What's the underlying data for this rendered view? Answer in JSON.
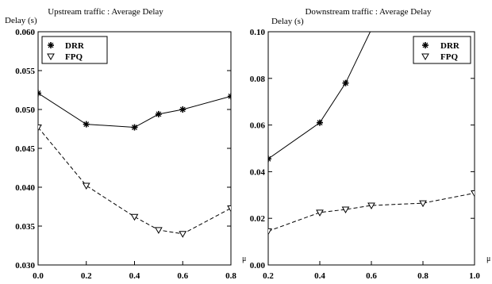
{
  "chart_data": [
    {
      "type": "line",
      "title": "Upstream traffic : Average Delay",
      "ylabel": "Delay (s)",
      "xlabel": "μ",
      "xlim": [
        0.0,
        0.8
      ],
      "ylim": [
        0.03,
        0.06
      ],
      "xticks": [
        "0.0",
        "0.2",
        "0.4",
        "0.6",
        "0.8"
      ],
      "yticks": [
        "0.030",
        "0.035",
        "0.040",
        "0.045",
        "0.050",
        "0.055",
        "0.060"
      ],
      "legend_position": "top-left",
      "grid": false,
      "series": [
        {
          "name": "DRR",
          "line_style": "solid",
          "marker": "star",
          "x": [
            0.0,
            0.2,
            0.4,
            0.5,
            0.6,
            0.8
          ],
          "y": [
            0.0521,
            0.0481,
            0.0477,
            0.0494,
            0.05,
            0.0517
          ]
        },
        {
          "name": "FPQ",
          "line_style": "dashed",
          "marker": "triangle-down",
          "x": [
            0.0,
            0.2,
            0.4,
            0.5,
            0.6,
            0.8
          ],
          "y": [
            0.0477,
            0.0402,
            0.0362,
            0.0345,
            0.034,
            0.0373
          ]
        }
      ]
    },
    {
      "type": "line",
      "title": "Downstream traffic : Average Delay",
      "ylabel": "Delay (s)",
      "xlabel": "μ",
      "xlim": [
        0.2,
        1.0
      ],
      "ylim": [
        0.0,
        0.1
      ],
      "xticks": [
        "0.2",
        "0.4",
        "0.6",
        "0.8",
        "1.0"
      ],
      "yticks": [
        "0.00",
        "0.02",
        "0.04",
        "0.06",
        "0.08",
        "0.10"
      ],
      "legend_position": "top-right",
      "grid": false,
      "series": [
        {
          "name": "DRR",
          "line_style": "solid",
          "marker": "star",
          "x": [
            0.2,
            0.4,
            0.5,
            0.6
          ],
          "y": [
            0.0455,
            0.061,
            0.078,
            0.101
          ]
        },
        {
          "name": "FPQ",
          "line_style": "dashed",
          "marker": "triangle-down",
          "x": [
            0.2,
            0.4,
            0.5,
            0.6,
            0.8,
            1.0
          ],
          "y": [
            0.0145,
            0.0225,
            0.0238,
            0.0255,
            0.0265,
            0.0308
          ]
        }
      ]
    }
  ]
}
